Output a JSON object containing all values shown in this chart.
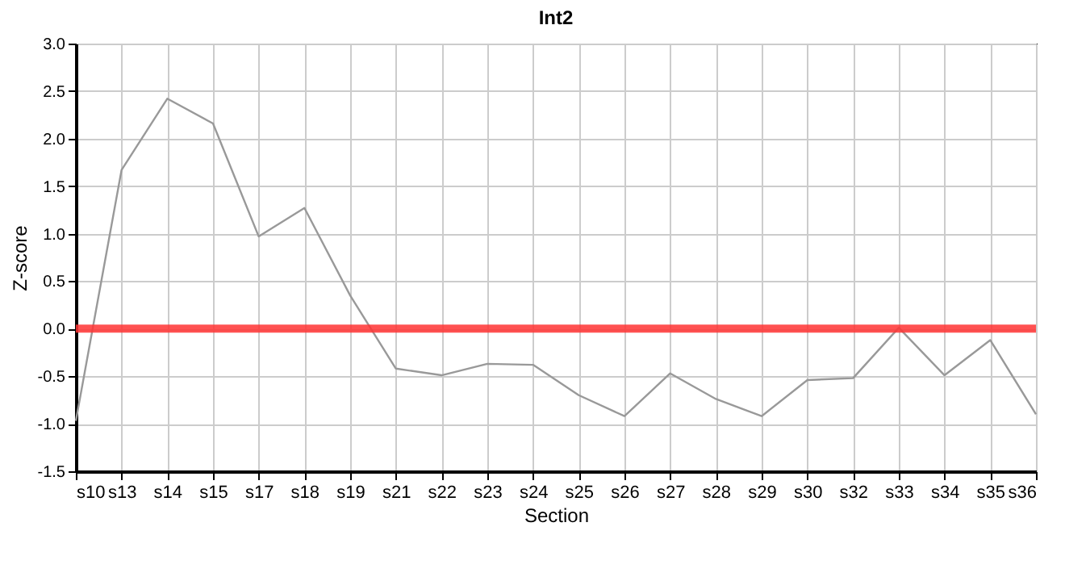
{
  "chart_data": {
    "type": "line",
    "title": "Int2",
    "xlabel": "Section",
    "ylabel": "Z-score",
    "categories": [
      "s10",
      "s13",
      "s14",
      "s15",
      "s17",
      "s18",
      "s19",
      "s21",
      "s22",
      "s23",
      "s24",
      "s25",
      "s26",
      "s27",
      "s28",
      "s29",
      "s30",
      "s32",
      "s33",
      "s34",
      "s35",
      "s36"
    ],
    "series": [
      {
        "color": "#999999",
        "values": [
          -0.97,
          1.67,
          2.42,
          2.16,
          0.97,
          1.27,
          0.35,
          -0.42,
          -0.49,
          -0.37,
          -0.38,
          -0.7,
          -0.92,
          -0.47,
          -0.74,
          -0.92,
          -0.54,
          -0.52,
          0.01,
          -0.49,
          -0.12,
          -0.9
        ]
      }
    ],
    "ylim": [
      -1.5,
      3.0
    ],
    "yticks": [
      {
        "value": -1.5,
        "label": "-1.5"
      },
      {
        "value": -1.0,
        "label": "-1.0"
      },
      {
        "value": -0.5,
        "label": "-0.5"
      },
      {
        "value": 0,
        "label": "0.0"
      },
      {
        "value": 0.5,
        "label": "0.5"
      },
      {
        "value": 1.0,
        "label": "1.0"
      },
      {
        "value": 1.5,
        "label": "1.5"
      },
      {
        "value": 2.0,
        "label": "2.0"
      },
      {
        "value": 2.5,
        "label": "2.5"
      },
      {
        "value": 3.0,
        "label": "3.0"
      }
    ],
    "ref_lines": [
      {
        "axis": "y",
        "value": 0,
        "color": "#ff3333"
      }
    ],
    "grid": true,
    "marker": "none",
    "line_style": "solid"
  }
}
